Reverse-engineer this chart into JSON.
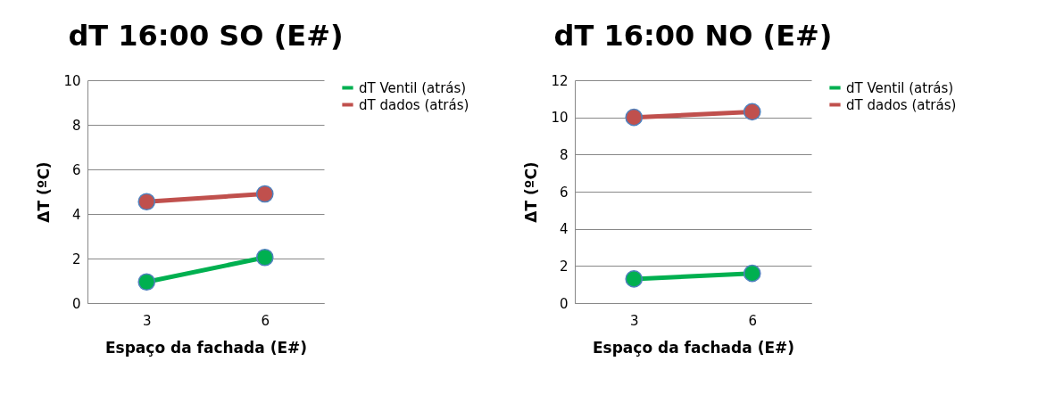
{
  "chart_data": [
    {
      "type": "line",
      "title": "dT 16:00 SO (E#)",
      "xlabel": "Espaço da fachada (E#)",
      "ylabel": "ΔT (ºC)",
      "categories": [
        "3",
        "6"
      ],
      "series": [
        {
          "name": "dT Ventil (atrás)",
          "color": "#00b050",
          "values": [
            0.95,
            2.05
          ]
        },
        {
          "name": "dT dados (atrás)",
          "color": "#c0504d",
          "values": [
            4.55,
            4.9
          ]
        }
      ],
      "ylim": [
        0,
        10
      ],
      "yticks": [
        0,
        2,
        4,
        6,
        8,
        10
      ],
      "grid": "y",
      "legend": "right",
      "marker": "circle"
    },
    {
      "type": "line",
      "title": "dT 16:00 NO (E#)",
      "xlabel": "Espaço da fachada (E#)",
      "ylabel": "ΔT (ºC)",
      "categories": [
        "3",
        "6"
      ],
      "series": [
        {
          "name": "dT Ventil (atrás)",
          "color": "#00b050",
          "values": [
            1.3,
            1.6
          ]
        },
        {
          "name": "dT dados (atrás)",
          "color": "#c0504d",
          "values": [
            10.0,
            10.3
          ]
        }
      ],
      "ylim": [
        0,
        12
      ],
      "yticks": [
        0,
        2,
        4,
        6,
        8,
        10,
        12
      ],
      "grid": "y",
      "legend": "right",
      "marker": "circle"
    }
  ]
}
